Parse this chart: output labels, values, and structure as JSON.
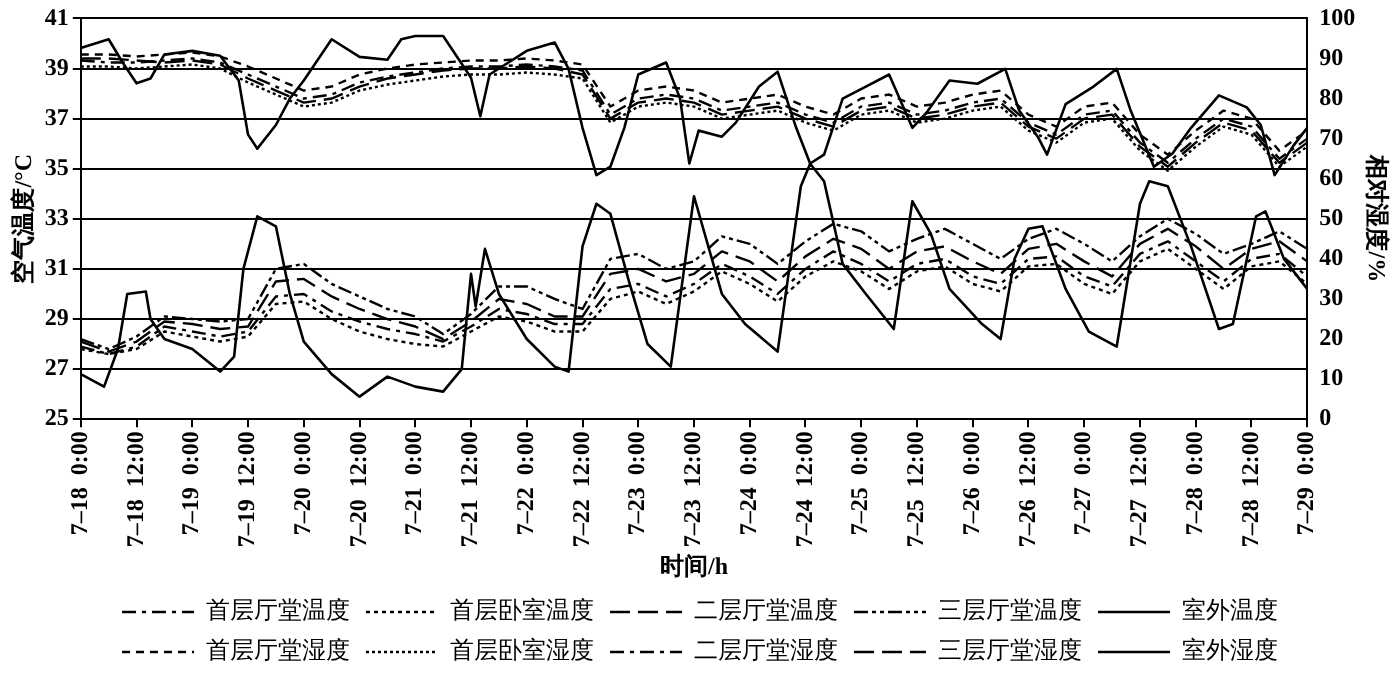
{
  "chart_data": {
    "type": "line",
    "xlabel": "时间/h",
    "ylabel": "空气温度/°C",
    "y2label": "相对湿度/%",
    "x": [
      "--07-18T00:00",
      "--07-18T06:00",
      "--07-18T12:00",
      "--07-18T18:00",
      "--07-19T00:00",
      "--07-19T06:00",
      "--07-19T12:00",
      "--07-19T18:00",
      "--07-20T00:00",
      "--07-20T06:00",
      "--07-20T12:00",
      "--07-20T18:00",
      "--07-21T00:00",
      "--07-21T06:00",
      "--07-21T12:00",
      "--07-21T18:00",
      "--07-22T00:00",
      "--07-22T06:00",
      "--07-22T12:00",
      "--07-22T18:00",
      "--07-23T00:00",
      "--07-23T06:00",
      "--07-23T12:00",
      "--07-23T18:00",
      "--07-24T00:00",
      "--07-24T06:00",
      "--07-24T12:00",
      "--07-24T18:00",
      "--07-25T00:00",
      "--07-25T06:00",
      "--07-25T12:00",
      "--07-25T18:00",
      "--07-26T00:00",
      "--07-26T06:00",
      "--07-26T12:00",
      "--07-26T18:00",
      "--07-27T00:00",
      "--07-27T06:00",
      "--07-27T12:00",
      "--07-27T18:00",
      "--07-28T00:00",
      "--07-28T06:00",
      "--07-28T12:00",
      "--07-28T18:00",
      "--07-29T00:00"
    ],
    "xlim": [
      "--07-18T00:00",
      "--07-29T00:00"
    ],
    "xticks": [
      {
        "value": "--07-18T00:00",
        "label": "7–18  0:00"
      },
      {
        "value": "--07-18T12:00",
        "label": "7–18  12:00"
      },
      {
        "value": "--07-19T00:00",
        "label": "7–19  0:00"
      },
      {
        "value": "--07-19T12:00",
        "label": "7–19  12:00"
      },
      {
        "value": "--07-20T00:00",
        "label": "7–20  0:00"
      },
      {
        "value": "--07-20T12:00",
        "label": "7–20  12:00"
      },
      {
        "value": "--07-21T00:00",
        "label": "7–21  0:00"
      },
      {
        "value": "--07-21T12:00",
        "label": "7–21  12:00"
      },
      {
        "value": "--07-22T00:00",
        "label": "7–22  0:00"
      },
      {
        "value": "--07-22T12:00",
        "label": "7–22  12:00"
      },
      {
        "value": "--07-23T00:00",
        "label": "7–23  0:00"
      },
      {
        "value": "--07-23T12:00",
        "label": "7–23  12:00"
      },
      {
        "value": "--07-24T00:00",
        "label": "7–24  0:00"
      },
      {
        "value": "--07-24T12:00",
        "label": "7–24  12:00"
      },
      {
        "value": "--07-25T00:00",
        "label": "7–25  0:00"
      },
      {
        "value": "--07-25T12:00",
        "label": "7–25  12:00"
      },
      {
        "value": "--07-26T00:00",
        "label": "7–26  0:00"
      },
      {
        "value": "--07-26T12:00",
        "label": "7–26  12:00"
      },
      {
        "value": "--07-27T00:00",
        "label": "7–27  0:00"
      },
      {
        "value": "--07-27T12:00",
        "label": "7–27  12:00"
      },
      {
        "value": "--07-28T00:00",
        "label": "7–28  0:00"
      },
      {
        "value": "--07-28T12:00",
        "label": "7–28  12:00"
      },
      {
        "value": "--07-29T00:00",
        "label": "7–29  0:00"
      }
    ],
    "ylim": [
      25,
      41
    ],
    "yticks": [
      25,
      27,
      29,
      31,
      33,
      35,
      37,
      39,
      41
    ],
    "y2lim": [
      0,
      100
    ],
    "y2ticks": [
      0,
      10,
      20,
      30,
      40,
      50,
      60,
      70,
      80,
      90,
      100
    ],
    "grid": "y",
    "legend": "bottom",
    "marker": "none",
    "series": [
      {
        "name": "首层厅堂温度",
        "color": "#000000",
        "line_style": "dashed",
        "values": [
          27.9,
          27.6,
          27.9,
          28.7,
          28.5,
          28.3,
          28.5,
          29.9,
          30.0,
          29.3,
          28.9,
          28.6,
          28.4,
          28.1,
          28.7,
          29.4,
          29.2,
          28.8,
          28.8,
          30.2,
          30.4,
          29.9,
          30.4,
          31.2,
          30.7,
          30.0,
          31.0,
          31.7,
          31.2,
          30.5,
          31.2,
          31.4,
          30.7,
          30.4,
          31.4,
          31.5,
          30.7,
          30.3,
          31.6,
          32.1,
          31.3,
          30.5,
          31.4,
          31.6,
          30.7
        ]
      },
      {
        "name": "首层卧室温度",
        "color": "#000000",
        "line_style": "dotted",
        "values": [
          27.8,
          27.6,
          27.8,
          28.5,
          28.3,
          28.1,
          28.3,
          29.6,
          29.7,
          29.0,
          28.5,
          28.2,
          28.0,
          27.9,
          28.5,
          29.1,
          28.9,
          28.5,
          28.5,
          29.8,
          30.1,
          29.6,
          30.1,
          30.9,
          30.4,
          29.7,
          30.7,
          31.3,
          30.9,
          30.2,
          30.9,
          31.1,
          30.4,
          30.1,
          31.1,
          31.2,
          30.4,
          30.0,
          31.3,
          31.8,
          31.0,
          30.2,
          31.1,
          31.3,
          30.4
        ]
      },
      {
        "name": "二层厅堂温度",
        "color": "#000000",
        "line_style": "dashed",
        "values": [
          28.1,
          27.7,
          28.1,
          28.9,
          28.8,
          28.6,
          28.7,
          30.5,
          30.6,
          29.9,
          29.4,
          29.0,
          28.7,
          28.2,
          28.9,
          29.8,
          29.6,
          29.1,
          29.1,
          30.8,
          31.0,
          30.5,
          30.8,
          31.7,
          31.3,
          30.5,
          31.5,
          32.2,
          31.8,
          31.0,
          31.7,
          31.9,
          31.3,
          30.8,
          31.8,
          32.0,
          31.3,
          30.7,
          32.0,
          32.6,
          31.9,
          31.0,
          31.8,
          32.1,
          31.3
        ]
      },
      {
        "name": "三层厅堂温度",
        "color": "#000000",
        "line_style": "dashed",
        "values": [
          28.2,
          27.8,
          28.3,
          29.1,
          29.0,
          28.9,
          29.0,
          31.0,
          31.2,
          30.4,
          29.9,
          29.4,
          29.1,
          28.4,
          29.2,
          30.3,
          30.3,
          29.8,
          29.4,
          31.4,
          31.6,
          31.0,
          31.3,
          32.3,
          32.0,
          31.2,
          32.1,
          32.8,
          32.5,
          31.7,
          32.2,
          32.6,
          32.0,
          31.4,
          32.2,
          32.6,
          32.0,
          31.3,
          32.3,
          33.0,
          32.4,
          31.6,
          32.0,
          32.5,
          31.8
        ]
      },
      {
        "name": "室外温度",
        "color": "#000000",
        "line_style": "solid",
        "x": [
          "--07-18T00:00",
          "--07-18T05:00",
          "--07-18T08:00",
          "--07-18T10:00",
          "--07-18T14:00",
          "--07-18T15:00",
          "--07-18T18:00",
          "--07-19T00:00",
          "--07-19T06:00",
          "--07-19T09:00",
          "--07-19T11:00",
          "--07-19T14:00",
          "--07-19T18:00",
          "--07-19T21:00",
          "--07-20T00:00",
          "--07-20T06:00",
          "--07-20T12:00",
          "--07-20T18:00",
          "--07-21T00:00",
          "--07-21T06:00",
          "--07-21T10:00",
          "--07-21T12:00",
          "--07-21T13:00",
          "--07-21T15:00",
          "--07-21T18:00",
          "--07-22T00:00",
          "--07-22T06:00",
          "--07-22T09:00",
          "--07-22T12:00",
          "--07-22T15:00",
          "--07-22T18:00",
          "--07-22T22:00",
          "--07-23T02:00",
          "--07-23T07:00",
          "--07-23T12:00",
          "--07-23T18:00",
          "--07-23T23:00",
          "--07-24T06:00",
          "--07-24T11:00",
          "--07-24T13:00",
          "--07-24T16:00",
          "--07-24T20:00",
          "--07-25T01:00",
          "--07-25T07:00",
          "--07-25T11:00",
          "--07-25T15:00",
          "--07-25T19:00",
          "--07-26T02:00",
          "--07-26T06:00",
          "--07-26T09:00",
          "--07-26T12:00",
          "--07-26T15:00",
          "--07-26T20:00",
          "--07-27T01:00",
          "--07-27T07:00",
          "--07-27T12:00",
          "--07-27T14:00",
          "--07-27T18:00",
          "--07-27T23:00",
          "--07-28T05:00",
          "--07-28T08:00",
          "--07-28T13:00",
          "--07-28T15:00",
          "--07-28T19:00",
          "--07-29T00:00"
        ],
        "values": [
          26.8,
          26.3,
          27.8,
          30.0,
          30.1,
          29.0,
          28.2,
          27.8,
          26.9,
          27.5,
          31.0,
          33.1,
          32.7,
          30.0,
          28.1,
          26.8,
          25.9,
          26.7,
          26.3,
          26.1,
          27.0,
          30.8,
          29.5,
          31.8,
          30.0,
          28.2,
          27.1,
          26.9,
          31.9,
          33.6,
          33.2,
          30.5,
          28.0,
          27.1,
          33.9,
          30.0,
          28.8,
          27.7,
          34.3,
          35.2,
          34.5,
          31.2,
          30.0,
          28.6,
          33.7,
          32.4,
          30.2,
          28.8,
          28.2,
          31.4,
          32.6,
          32.7,
          30.2,
          28.5,
          27.9,
          33.6,
          34.5,
          34.3,
          31.9,
          28.6,
          28.8,
          33.1,
          33.3,
          31.4,
          30.2
        ]
      },
      {
        "name": "首层厅堂湿度",
        "color": "#000000",
        "line_style": "dashed",
        "axis": "y2",
        "values": [
          91,
          91,
          90.5,
          91,
          91.5,
          90.5,
          88,
          85,
          82,
          83,
          86,
          87.5,
          88.5,
          89,
          89.5,
          89.5,
          90,
          89.5,
          88.5,
          78,
          82,
          83,
          82,
          79,
          80,
          81,
          78,
          76,
          80,
          81,
          78,
          79,
          81,
          82,
          76,
          73,
          78,
          79,
          71,
          66,
          72,
          77,
          75,
          67,
          72
        ]
      },
      {
        "name": "首层卧室湿度",
        "color": "#000000",
        "line_style": "dotted",
        "axis": "y2",
        "values": [
          88,
          88,
          87.5,
          88,
          88.5,
          87.5,
          84,
          81,
          78,
          79,
          82,
          83.5,
          84.5,
          85.5,
          86,
          86,
          86.5,
          86,
          85,
          74,
          78,
          79,
          78,
          75,
          76,
          77,
          74,
          72,
          76,
          77,
          74,
          75,
          77,
          78,
          72,
          69,
          74,
          75,
          67,
          62,
          68,
          73,
          71,
          63,
          68
        ]
      },
      {
        "name": "二层厅堂湿度",
        "color": "#000000",
        "line_style": "dashed",
        "axis": "y2",
        "values": [
          89.5,
          89,
          89,
          89.5,
          90,
          89,
          86,
          83,
          80,
          81,
          84,
          85.5,
          86.5,
          87.5,
          88,
          88,
          88.5,
          88,
          87,
          76,
          80,
          81,
          80,
          77,
          78,
          79,
          76,
          74,
          78,
          79,
          76,
          77,
          79,
          80,
          74,
          71,
          76,
          77,
          69,
          64,
          70,
          75,
          73,
          65,
          70
        ]
      },
      {
        "name": "三层厅堂湿度",
        "color": "#000000",
        "line_style": "dashed",
        "axis": "y2",
        "values": [
          90,
          90,
          89.5,
          89,
          89.5,
          88.5,
          85,
          82,
          79,
          80,
          83,
          85,
          86,
          87,
          87.5,
          87.5,
          88,
          87.5,
          86,
          75,
          79,
          80,
          79,
          76,
          77,
          78,
          75,
          73,
          77,
          78,
          75,
          76,
          78,
          79,
          73,
          70,
          75,
          76,
          68,
          63,
          69,
          74,
          72,
          64,
          69
        ]
      },
      {
        "name": "室外湿度",
        "color": "#000000",
        "line_style": "solid",
        "axis": "y2",
        "x": [
          "--07-18T00:00",
          "--07-18T06:00",
          "--07-18T09:00",
          "--07-18T12:00",
          "--07-18T15:00",
          "--07-18T18:00",
          "--07-19T00:00",
          "--07-19T06:00",
          "--07-19T10:00",
          "--07-19T12:00",
          "--07-19T14:00",
          "--07-19T18:00",
          "--07-19T21:00",
          "--07-20T00:00",
          "--07-20T06:00",
          "--07-20T12:00",
          "--07-20T18:00",
          "--07-20T21:00",
          "--07-21T00:00",
          "--07-21T06:00",
          "--07-21T12:00",
          "--07-21T14:00",
          "--07-21T16:00",
          "--07-22T00:00",
          "--07-22T06:00",
          "--07-22T09:00",
          "--07-22T12:00",
          "--07-22T15:00",
          "--07-22T18:00",
          "--07-22T21:00",
          "--07-23T00:00",
          "--07-23T06:00",
          "--07-23T09:00",
          "--07-23T11:00",
          "--07-23T13:00",
          "--07-23T18:00",
          "--07-23T21:00",
          "--07-24T02:00",
          "--07-24T06:00",
          "--07-24T10:00",
          "--07-24T13:00",
          "--07-24T16:00",
          "--07-24T20:00",
          "--07-25T01:00",
          "--07-25T06:00",
          "--07-25T11:00",
          "--07-25T14:00",
          "--07-25T19:00",
          "--07-26T01:00",
          "--07-26T07:00",
          "--07-26T10:00",
          "--07-26T14:00",
          "--07-26T16:00",
          "--07-26T20:00",
          "--07-27T02:00",
          "--07-27T07:00",
          "--07-27T10:00",
          "--07-27T15:00",
          "--07-27T19:00",
          "--07-27T23:00",
          "--07-28T05:00",
          "--07-28T11:00",
          "--07-28T14:00",
          "--07-28T17:00",
          "--07-28T21:00",
          "--07-29T00:00"
        ],
        "values": [
          92.6,
          94.8,
          89,
          83.8,
          85,
          91,
          91.9,
          90.7,
          84.5,
          71,
          67.5,
          73.4,
          80,
          84.5,
          94.8,
          90.4,
          89.7,
          94.8,
          95.6,
          95.6,
          85.2,
          75.6,
          86,
          91.9,
          94,
          87.4,
          72.7,
          60.9,
          63,
          72.7,
          86,
          89,
          80,
          63.8,
          72,
          70.5,
          74,
          83,
          86.7,
          72.7,
          63.8,
          66,
          80,
          83,
          86,
          72.7,
          76.4,
          84.5,
          83.7,
          87.4,
          77,
          70.5,
          66,
          78.6,
          83,
          87.4,
          77,
          63,
          66.3,
          72.7,
          80.8,
          77.8,
          73.4,
          60.9,
          68.2,
          72.7
        ]
      }
    ]
  }
}
